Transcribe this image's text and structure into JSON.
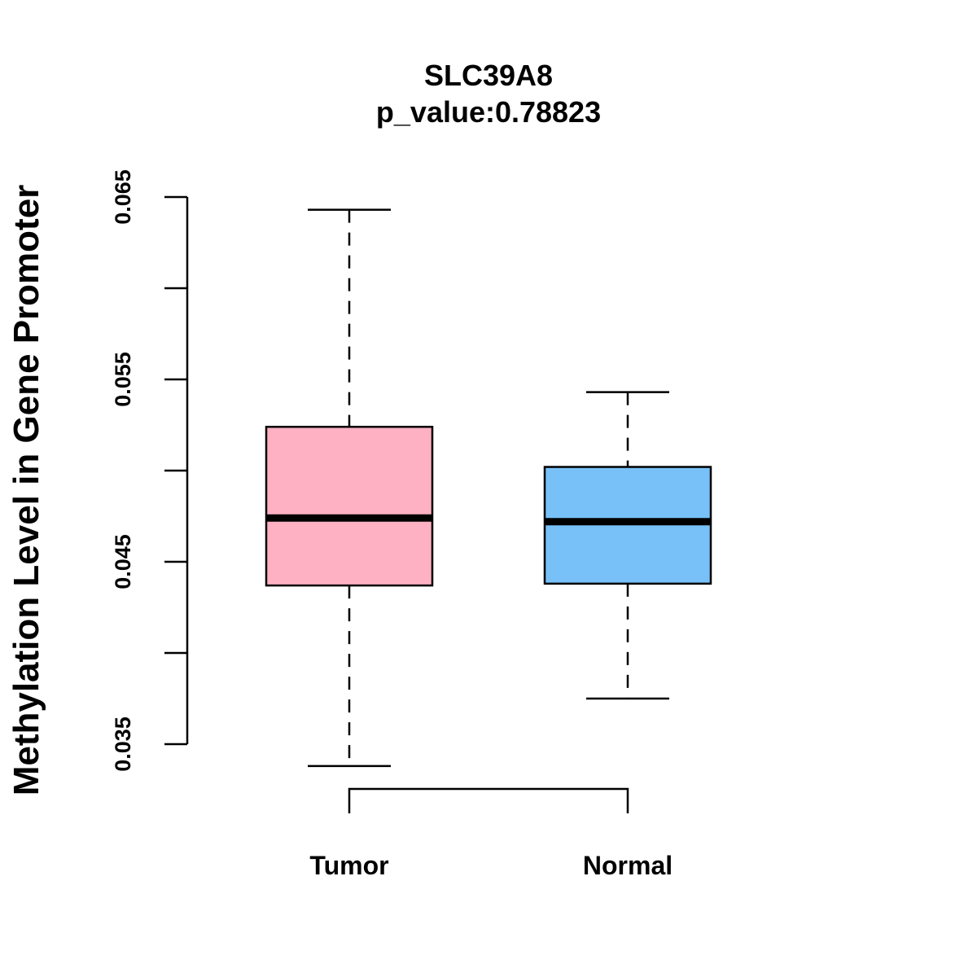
{
  "chart_data": {
    "type": "boxplot",
    "title": "SLC39A8",
    "subtitle": "p_value:0.78823",
    "xlabel": "",
    "ylabel": "Methylation Level in Gene Promoter",
    "categories": [
      "Tumor",
      "Normal"
    ],
    "boxes": [
      {
        "name": "Tumor",
        "whisker_low": 0.0338,
        "q1": 0.0437,
        "median": 0.0474,
        "q3": 0.0524,
        "whisker_high": 0.0643,
        "fill": "#FDB1C3"
      },
      {
        "name": "Normal",
        "whisker_low": 0.0375,
        "q1": 0.0438,
        "median": 0.0472,
        "q3": 0.0502,
        "whisker_high": 0.0543,
        "fill": "#78C1F8"
      }
    ],
    "yticks": [
      0.035,
      0.04,
      0.045,
      0.05,
      0.055,
      0.06,
      0.065
    ],
    "ytick_labels": [
      "0.035",
      "",
      "0.045",
      "",
      "0.055",
      "",
      "0.065"
    ],
    "ylim": [
      0.035,
      0.065
    ],
    "grid": false,
    "comparison_bracket": [
      "Tumor",
      "Normal"
    ]
  }
}
